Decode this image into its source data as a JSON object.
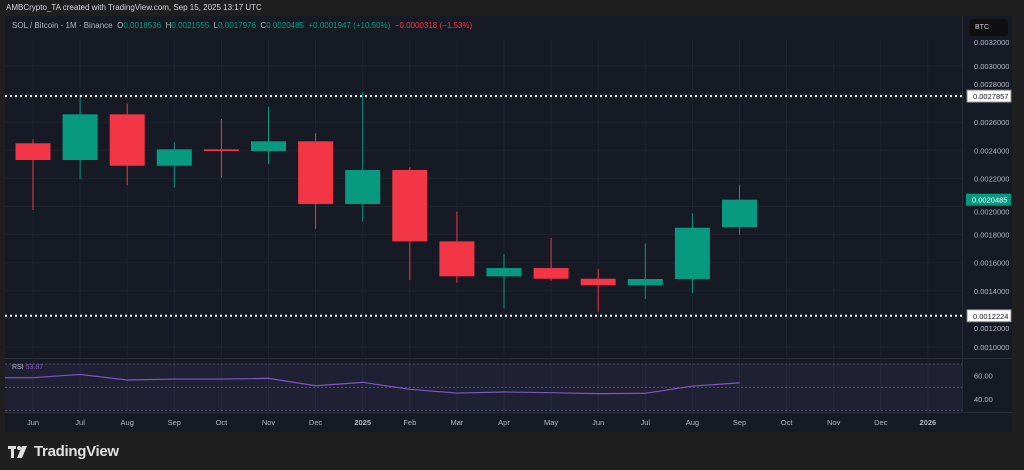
{
  "credit": "AMBCrypto_TA created with TradingView.com, Sep 15, 2025 13:17 UTC",
  "legend": {
    "symbol": "SOL / Bitcoin · 1M · Binance",
    "o_label": "O",
    "o": "0.0018536",
    "h_label": "H",
    "h": "0.0021555",
    "l_label": "L",
    "l": "0.0017976",
    "c_label": "C",
    "c": "0.0020485",
    "change": "+0.0001947 (+10.50%)",
    "change2": "−0.0000318 (−1.53%)"
  },
  "currency_button": "BTC",
  "colors": {
    "up": "#089981",
    "down": "#f23645",
    "rsi": "#7e57c2",
    "background": "#161a25"
  },
  "price_axis": {
    "ticks": [
      "0.0032000",
      "0.0030000",
      "0.0028000",
      "0.0026000",
      "0.0024000",
      "0.0022000",
      "0.0020000",
      "0.0018000",
      "0.0016000",
      "0.0014000",
      "0.0012000",
      "0.0010000"
    ],
    "horizontal_lines": [
      "0.0027857",
      "0.0012224"
    ],
    "last_price": "0.0020485"
  },
  "rsi": {
    "label": "RSI",
    "value": "53.87",
    "ticks": [
      "60.00",
      "40.00"
    ]
  },
  "time_axis": [
    "Jun",
    "Jul",
    "Aug",
    "Sep",
    "Oct",
    "Nov",
    "Dec",
    "2025",
    "Feb",
    "Mar",
    "Apr",
    "May",
    "Jun",
    "Jul",
    "Aug",
    "Sep",
    "Oct",
    "Nov",
    "Dec",
    "2026"
  ],
  "chart_data": {
    "type": "candlestick",
    "title": "SOL / Bitcoin · 1M · Binance",
    "categories": [
      "Jun 2024",
      "Jul 2024",
      "Aug 2024",
      "Sep 2024",
      "Oct 2024",
      "Nov 2024",
      "Dec 2024",
      "Jan 2025",
      "Feb 2025",
      "Mar 2025",
      "Apr 2025",
      "May 2025",
      "Jun 2025",
      "Jul 2025",
      "Aug 2025",
      "Sep 2025"
    ],
    "ohlc": [
      [
        0.00245,
        0.002478,
        0.001975,
        0.002331
      ],
      [
        0.002331,
        0.002794,
        0.002194,
        0.002656
      ],
      [
        0.002656,
        0.002734,
        0.002153,
        0.00229
      ],
      [
        0.00229,
        0.002457,
        0.002134,
        0.002407
      ],
      [
        0.002407,
        0.002623,
        0.002205,
        0.002395
      ],
      [
        0.002395,
        0.00271,
        0.002303,
        0.002464
      ],
      [
        0.002464,
        0.002521,
        0.00184,
        0.002018
      ],
      [
        0.002018,
        0.002817,
        0.001892,
        0.00226
      ],
      [
        0.00226,
        0.002279,
        0.001477,
        0.001752
      ],
      [
        0.001752,
        0.001963,
        0.001458,
        0.001503
      ],
      [
        0.001503,
        0.001662,
        0.001275,
        0.001562
      ],
      [
        0.001562,
        0.001776,
        0.001472,
        0.001486
      ],
      [
        0.001486,
        0.001555,
        0.001251,
        0.001439
      ],
      [
        0.001439,
        0.001738,
        0.001342,
        0.001484
      ],
      [
        0.001484,
        0.001952,
        0.001382,
        0.001849
      ],
      [
        0.0018536,
        0.0021555,
        0.0017976,
        0.0020485
      ]
    ],
    "ylim": [
      0.0009,
      0.0032
    ],
    "rsi_values": [
      58.3,
      61.1,
      56.3,
      57.1,
      57.1,
      57.7,
      51.4,
      54.3,
      48.3,
      45.1,
      46.0,
      45.4,
      44.6,
      44.9,
      51.1,
      53.87
    ],
    "rsi_bands": [
      70,
      50,
      30
    ],
    "grid": true
  }
}
